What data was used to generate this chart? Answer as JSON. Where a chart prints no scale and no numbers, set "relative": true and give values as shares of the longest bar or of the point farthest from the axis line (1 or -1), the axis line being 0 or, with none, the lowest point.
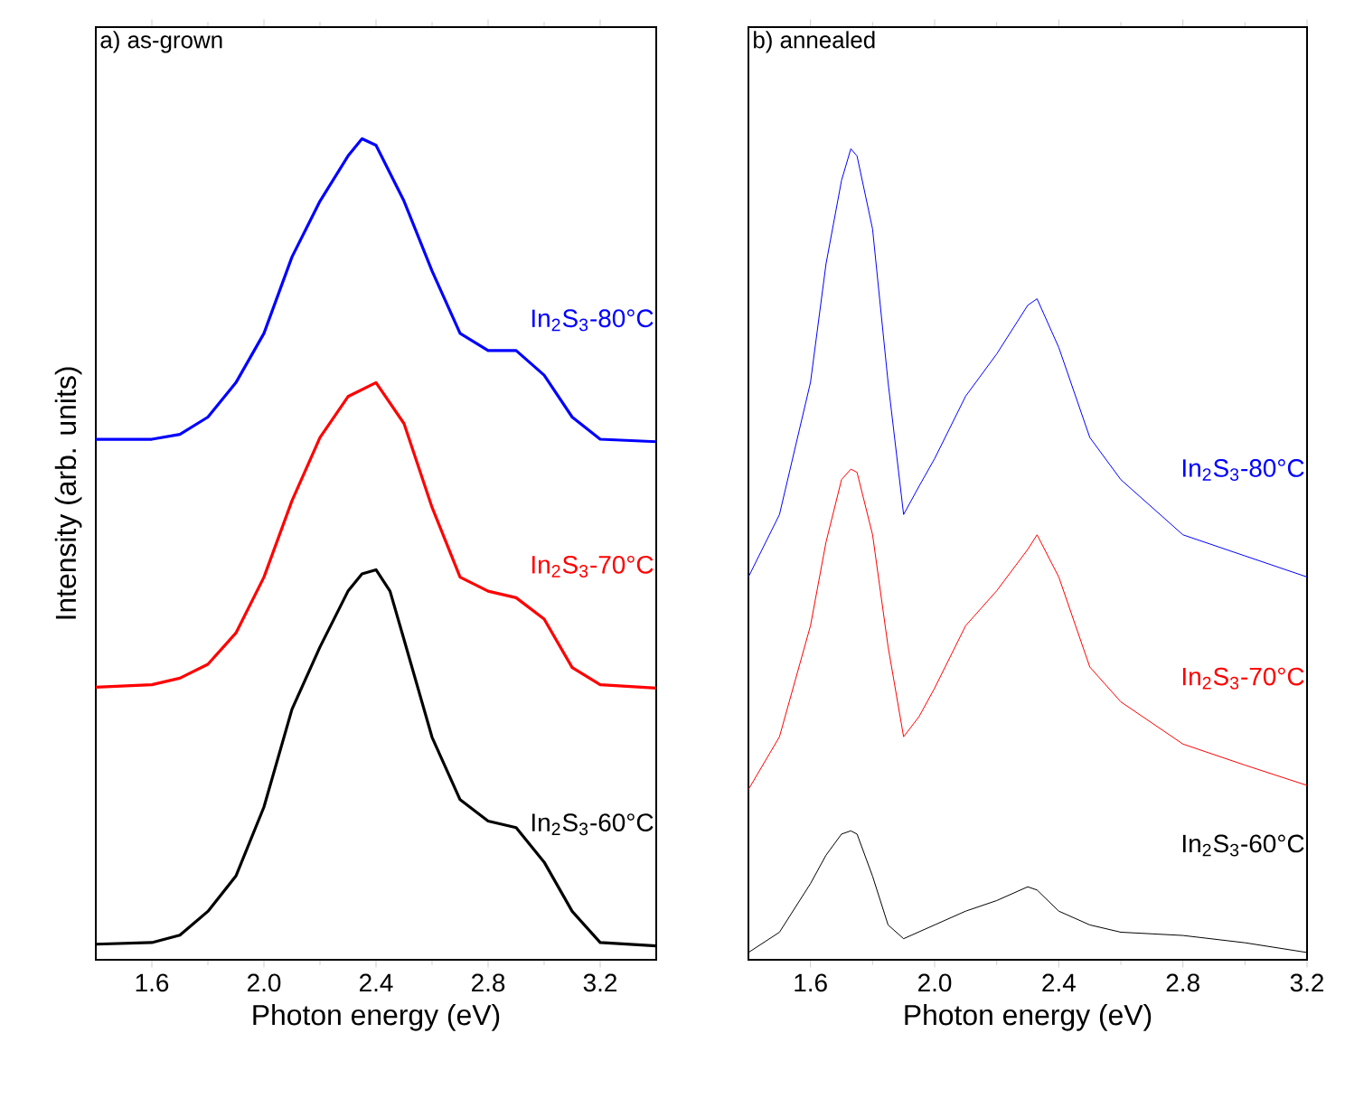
{
  "chart_data": [
    {
      "type": "line",
      "title": "a) as-grown",
      "xlabel": "Photon energy (eV)",
      "ylabel": "Intensity (arb. units)",
      "relative": true,
      "xlim": [
        1.4,
        3.4
      ],
      "xticks": [
        {
          "value": 1.6,
          "label": "1.6"
        },
        {
          "value": 2.0,
          "label": "2.0"
        },
        {
          "value": 2.4,
          "label": "2.4"
        },
        {
          "value": 2.8,
          "label": "2.8"
        },
        {
          "value": 3.2,
          "label": "3.2"
        }
      ],
      "series": [
        {
          "name": "In$_{2}$S$_{3}$-80°C",
          "color": "#0000ff",
          "x": [
            1.4,
            1.6,
            1.7,
            1.8,
            1.9,
            2.0,
            2.1,
            2.2,
            2.3,
            2.35,
            2.4,
            2.5,
            2.6,
            2.7,
            2.8,
            2.9,
            3.0,
            3.1,
            3.2,
            3.4
          ],
          "values": [
            0.634,
            0.634,
            0.64,
            0.661,
            0.703,
            0.763,
            0.856,
            0.924,
            0.979,
            1.0,
            0.992,
            0.924,
            0.839,
            0.763,
            0.742,
            0.742,
            0.712,
            0.661,
            0.634,
            0.631
          ]
        },
        {
          "name": "In$_{2}$S$_{3}$-70°C",
          "color": "#ff0000",
          "x": [
            1.4,
            1.6,
            1.7,
            1.8,
            1.9,
            2.0,
            2.1,
            2.2,
            2.3,
            2.4,
            2.5,
            2.6,
            2.7,
            2.8,
            2.9,
            3.0,
            3.1,
            3.2,
            3.4
          ],
          "values": [
            0.332,
            0.335,
            0.343,
            0.36,
            0.398,
            0.466,
            0.559,
            0.636,
            0.686,
            0.703,
            0.653,
            0.551,
            0.466,
            0.449,
            0.441,
            0.415,
            0.356,
            0.335,
            0.331
          ]
        },
        {
          "name": "In$_{2}$S$_{3}$-60°C",
          "color": "#000000",
          "x": [
            1.4,
            1.6,
            1.7,
            1.8,
            1.9,
            2.0,
            2.1,
            2.2,
            2.3,
            2.35,
            2.4,
            2.45,
            2.5,
            2.6,
            2.7,
            2.8,
            2.9,
            3.0,
            3.1,
            3.2,
            3.4
          ],
          "values": [
            0.019,
            0.021,
            0.03,
            0.059,
            0.102,
            0.186,
            0.305,
            0.381,
            0.449,
            0.47,
            0.475,
            0.449,
            0.39,
            0.271,
            0.195,
            0.169,
            0.161,
            0.119,
            0.059,
            0.021,
            0.017
          ]
        }
      ]
    },
    {
      "type": "line",
      "title": "b) annealed",
      "xlabel": "Photon energy (eV)",
      "relative": true,
      "xlim": [
        1.4,
        3.2
      ],
      "xticks": [
        {
          "value": 1.6,
          "label": "1.6"
        },
        {
          "value": 2.0,
          "label": "2.0"
        },
        {
          "value": 2.4,
          "label": "2.4"
        },
        {
          "value": 2.8,
          "label": "2.8"
        },
        {
          "value": 3.2,
          "label": "3.2"
        }
      ],
      "series": [
        {
          "name": "In$_{2}$S$_{3}$-80°C",
          "color": "#0000ff",
          "x": [
            1.4,
            1.5,
            1.6,
            1.65,
            1.7,
            1.73,
            1.75,
            1.8,
            1.85,
            1.9,
            1.95,
            2.0,
            2.1,
            2.2,
            2.3,
            2.33,
            2.4,
            2.5,
            2.6,
            2.8,
            3.0,
            3.2
          ],
          "values": [
            0.472,
            0.549,
            0.712,
            0.858,
            0.961,
            1.0,
            0.991,
            0.901,
            0.712,
            0.549,
            0.584,
            0.618,
            0.695,
            0.747,
            0.807,
            0.815,
            0.755,
            0.644,
            0.592,
            0.524,
            0.498,
            0.472
          ]
        },
        {
          "name": "In$_{2}$S$_{3}$-70°C",
          "color": "#ff0000",
          "x": [
            1.4,
            1.5,
            1.6,
            1.65,
            1.7,
            1.73,
            1.75,
            1.8,
            1.85,
            1.9,
            1.95,
            2.0,
            2.1,
            2.2,
            2.3,
            2.33,
            2.4,
            2.5,
            2.6,
            2.8,
            3.0,
            3.2
          ],
          "values": [
            0.21,
            0.275,
            0.412,
            0.515,
            0.592,
            0.605,
            0.601,
            0.524,
            0.386,
            0.275,
            0.3,
            0.335,
            0.412,
            0.455,
            0.506,
            0.524,
            0.472,
            0.361,
            0.318,
            0.266,
            0.24,
            0.215
          ]
        },
        {
          "name": "In$_{2}$S$_{3}$-60°C",
          "color": "#000000",
          "x": [
            1.4,
            1.5,
            1.6,
            1.65,
            1.7,
            1.73,
            1.75,
            1.8,
            1.85,
            1.9,
            2.0,
            2.1,
            2.2,
            2.3,
            2.33,
            2.4,
            2.5,
            2.6,
            2.8,
            3.0,
            3.2
          ],
          "values": [
            0.009,
            0.034,
            0.094,
            0.129,
            0.155,
            0.159,
            0.155,
            0.103,
            0.043,
            0.026,
            0.043,
            0.06,
            0.073,
            0.09,
            0.086,
            0.06,
            0.043,
            0.034,
            0.03,
            0.021,
            0.009
          ]
        }
      ]
    }
  ]
}
